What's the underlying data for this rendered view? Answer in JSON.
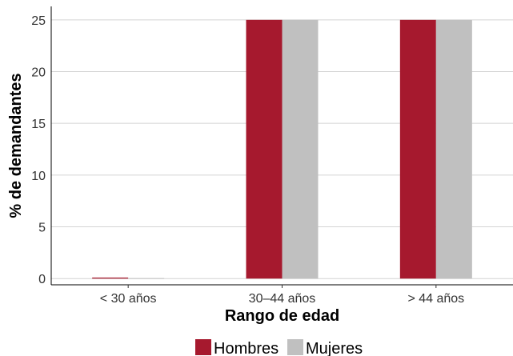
{
  "chart_data": {
    "type": "bar",
    "title": "",
    "xlabel": "Rango de edad",
    "ylabel": "% de demandantes",
    "categories": [
      "< 30 años",
      "30–44 años",
      "> 44 años"
    ],
    "series": [
      {
        "name": "Hombres",
        "color": "#a6192e",
        "values": [
          0.1,
          25,
          25
        ]
      },
      {
        "name": "Mujeres",
        "color": "#c0c0c0",
        "values": [
          0.05,
          25,
          25
        ]
      }
    ],
    "ylim": [
      -0.6,
      26.3
    ],
    "yticks": [
      0,
      5,
      10,
      15,
      20,
      25
    ],
    "grid": "horizontal",
    "legend_position": "bottom"
  }
}
